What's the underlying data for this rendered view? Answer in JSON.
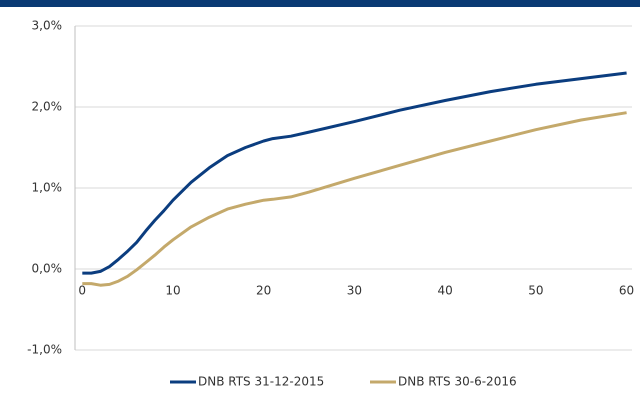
{
  "chart_data": {
    "type": "line",
    "x": [
      0,
      1,
      2,
      3,
      4,
      5,
      6,
      7,
      8,
      9,
      10,
      12,
      14,
      16,
      18,
      20,
      21,
      23,
      25,
      30,
      35,
      40,
      45,
      50,
      55,
      60
    ],
    "series": [
      {
        "name": "DNB RTS 31-12-2015",
        "color": "#0b3d7f",
        "values": [
          -0.05,
          -0.05,
          -0.03,
          0.03,
          0.12,
          0.22,
          0.33,
          0.47,
          0.6,
          0.72,
          0.85,
          1.07,
          1.25,
          1.4,
          1.5,
          1.58,
          1.61,
          1.64,
          1.69,
          1.82,
          1.96,
          2.08,
          2.19,
          2.28,
          2.35,
          2.42
        ]
      },
      {
        "name": "DNB RTS 30-6-2016",
        "color": "#c4a96b",
        "values": [
          -0.18,
          -0.18,
          -0.2,
          -0.19,
          -0.15,
          -0.09,
          -0.01,
          0.08,
          0.17,
          0.27,
          0.36,
          0.52,
          0.64,
          0.74,
          0.8,
          0.85,
          0.86,
          0.89,
          0.95,
          1.12,
          1.28,
          1.44,
          1.58,
          1.72,
          1.84,
          1.93
        ]
      }
    ],
    "xlim": [
      -0.8,
      60.6
    ],
    "xticks": [
      0,
      10,
      20,
      30,
      40,
      50,
      60
    ],
    "ylim": [
      -1,
      3
    ],
    "yticks": [
      {
        "value": -1,
        "label": "-1,0%"
      },
      {
        "value": 0,
        "label": "0,0%"
      },
      {
        "value": 1,
        "label": "1,0%"
      },
      {
        "value": 2,
        "label": "2,0%"
      },
      {
        "value": 3,
        "label": "3,0%"
      }
    ],
    "grid": true,
    "legend": "bottom"
  }
}
